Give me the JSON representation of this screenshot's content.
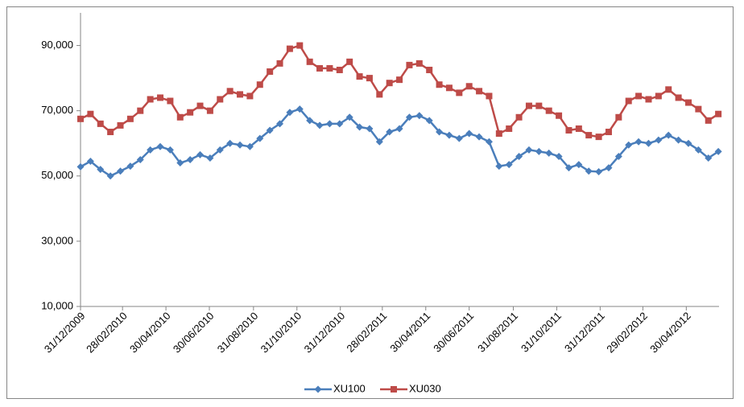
{
  "chart_data": {
    "type": "line",
    "x": [
      "2009-12-31",
      "2010-01-14",
      "2010-01-28",
      "2010-02-11",
      "2010-02-25",
      "2010-03-11",
      "2010-03-25",
      "2010-04-08",
      "2010-04-22",
      "2010-05-06",
      "2010-05-20",
      "2010-06-03",
      "2010-06-17",
      "2010-07-01",
      "2010-07-15",
      "2010-07-29",
      "2010-08-12",
      "2010-08-26",
      "2010-09-09",
      "2010-09-23",
      "2010-10-07",
      "2010-10-21",
      "2010-11-04",
      "2010-11-18",
      "2010-12-02",
      "2010-12-16",
      "2010-12-30",
      "2011-01-13",
      "2011-01-27",
      "2011-02-10",
      "2011-02-24",
      "2011-03-10",
      "2011-03-24",
      "2011-04-07",
      "2011-04-21",
      "2011-05-05",
      "2011-05-19",
      "2011-06-02",
      "2011-06-16",
      "2011-06-30",
      "2011-07-14",
      "2011-07-28",
      "2011-08-11",
      "2011-08-25",
      "2011-09-08",
      "2011-09-22",
      "2011-10-06",
      "2011-10-20",
      "2011-11-03",
      "2011-11-17",
      "2011-12-01",
      "2011-12-15",
      "2011-12-29",
      "2012-01-12",
      "2012-01-26",
      "2012-02-09",
      "2012-02-23",
      "2012-03-08",
      "2012-03-22",
      "2012-04-05",
      "2012-04-19",
      "2012-05-03",
      "2012-05-17",
      "2012-05-31",
      "2012-06-14"
    ],
    "series": [
      {
        "name": "XU100",
        "color": "#4a7ebb",
        "marker": "diamond",
        "values": [
          52800,
          54500,
          52000,
          50000,
          51500,
          53000,
          55000,
          58000,
          59000,
          58000,
          54000,
          55000,
          56500,
          55500,
          58000,
          60000,
          59500,
          59000,
          61500,
          64000,
          66000,
          69500,
          70500,
          67000,
          65500,
          66000,
          66000,
          68000,
          65000,
          64500,
          60500,
          63500,
          64500,
          68000,
          68500,
          67000,
          63500,
          62500,
          61500,
          63000,
          62000,
          60500,
          53000,
          53500,
          56000,
          58000,
          57500,
          57000,
          56000,
          52500,
          53500,
          51500,
          51300,
          52500,
          56000,
          59500,
          60500,
          60000,
          61000,
          62500,
          61000,
          60000,
          58000,
          55500,
          57500
        ]
      },
      {
        "name": "XU030",
        "color": "#be4b48",
        "marker": "square",
        "values": [
          67500,
          69000,
          66000,
          63500,
          65500,
          67500,
          70000,
          73500,
          74000,
          73000,
          68000,
          69500,
          71500,
          70000,
          73500,
          76000,
          75000,
          74500,
          78000,
          82000,
          84500,
          89000,
          90000,
          85000,
          83000,
          83000,
          82500,
          85000,
          80500,
          80000,
          75000,
          78500,
          79500,
          84000,
          84500,
          82500,
          78000,
          77000,
          75500,
          77500,
          76000,
          74500,
          63000,
          64500,
          68000,
          71500,
          71500,
          70000,
          68500,
          64000,
          64500,
          62500,
          62000,
          63500,
          68000,
          73000,
          74500,
          73500,
          74500,
          76500,
          74000,
          72500,
          70500,
          67000,
          69000
        ]
      }
    ],
    "xlim": [
      "2009-12-31",
      "2012-06-15"
    ],
    "xticks": [
      {
        "value": "2009-12-31",
        "label": "31/12/2009"
      },
      {
        "value": "2010-02-28",
        "label": "28/02/2010"
      },
      {
        "value": "2010-04-30",
        "label": "30/04/2010"
      },
      {
        "value": "2010-06-30",
        "label": "30/06/2010"
      },
      {
        "value": "2010-08-31",
        "label": "31/08/2010"
      },
      {
        "value": "2010-10-31",
        "label": "31/10/2010"
      },
      {
        "value": "2010-12-31",
        "label": "31/12/2010"
      },
      {
        "value": "2011-02-28",
        "label": "28/02/2011"
      },
      {
        "value": "2011-04-30",
        "label": "30/04/2011"
      },
      {
        "value": "2011-06-30",
        "label": "30/06/2011"
      },
      {
        "value": "2011-08-31",
        "label": "31/08/2011"
      },
      {
        "value": "2011-10-31",
        "label": "31/10/2011"
      },
      {
        "value": "2011-12-31",
        "label": "31/12/2011"
      },
      {
        "value": "2012-02-29",
        "label": "29/02/2012"
      },
      {
        "value": "2012-04-30",
        "label": "30/04/2012"
      }
    ],
    "ylim": [
      10000,
      100000
    ],
    "yticks": [
      {
        "value": 10000,
        "label": "10,000"
      },
      {
        "value": 30000,
        "label": "30,000"
      },
      {
        "value": 50000,
        "label": "50,000"
      },
      {
        "value": 70000,
        "label": "70,000"
      },
      {
        "value": 90000,
        "label": "90,000"
      }
    ],
    "grid": false,
    "legend": "bottom"
  }
}
